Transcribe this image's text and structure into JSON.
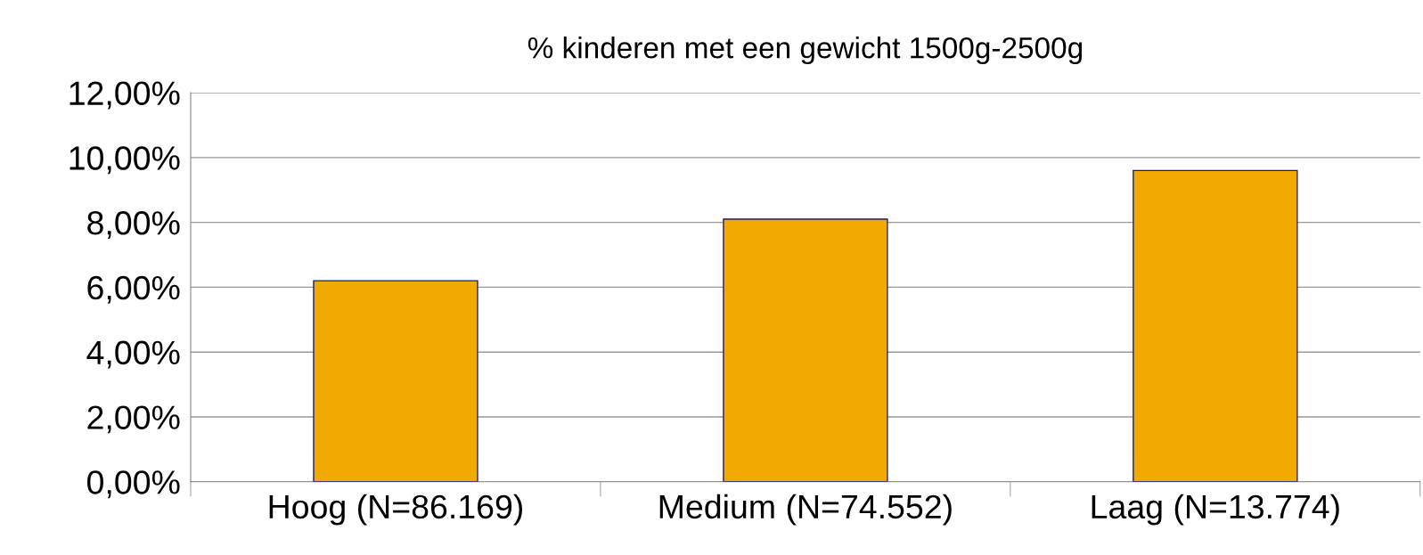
{
  "chart_data": {
    "type": "bar",
    "title": "% kinderen met een gewicht 1500g-2500g",
    "categories": [
      "Hoog (N=86.169)",
      "Medium (N=74.552)",
      "Laag (N=13.774)"
    ],
    "values": [
      6.2,
      8.1,
      9.6
    ],
    "color": "#f0aa00",
    "ylim": [
      0,
      12
    ],
    "yticks": [
      {
        "value": 0,
        "label": "0,00%"
      },
      {
        "value": 2,
        "label": "2,00%"
      },
      {
        "value": 4,
        "label": "4,00%"
      },
      {
        "value": 6,
        "label": "6,00%"
      },
      {
        "value": 8,
        "label": "8,00%"
      },
      {
        "value": 10,
        "label": "10,00%"
      },
      {
        "value": 12,
        "label": "12,00%"
      }
    ],
    "grid": "y",
    "legend": false
  }
}
